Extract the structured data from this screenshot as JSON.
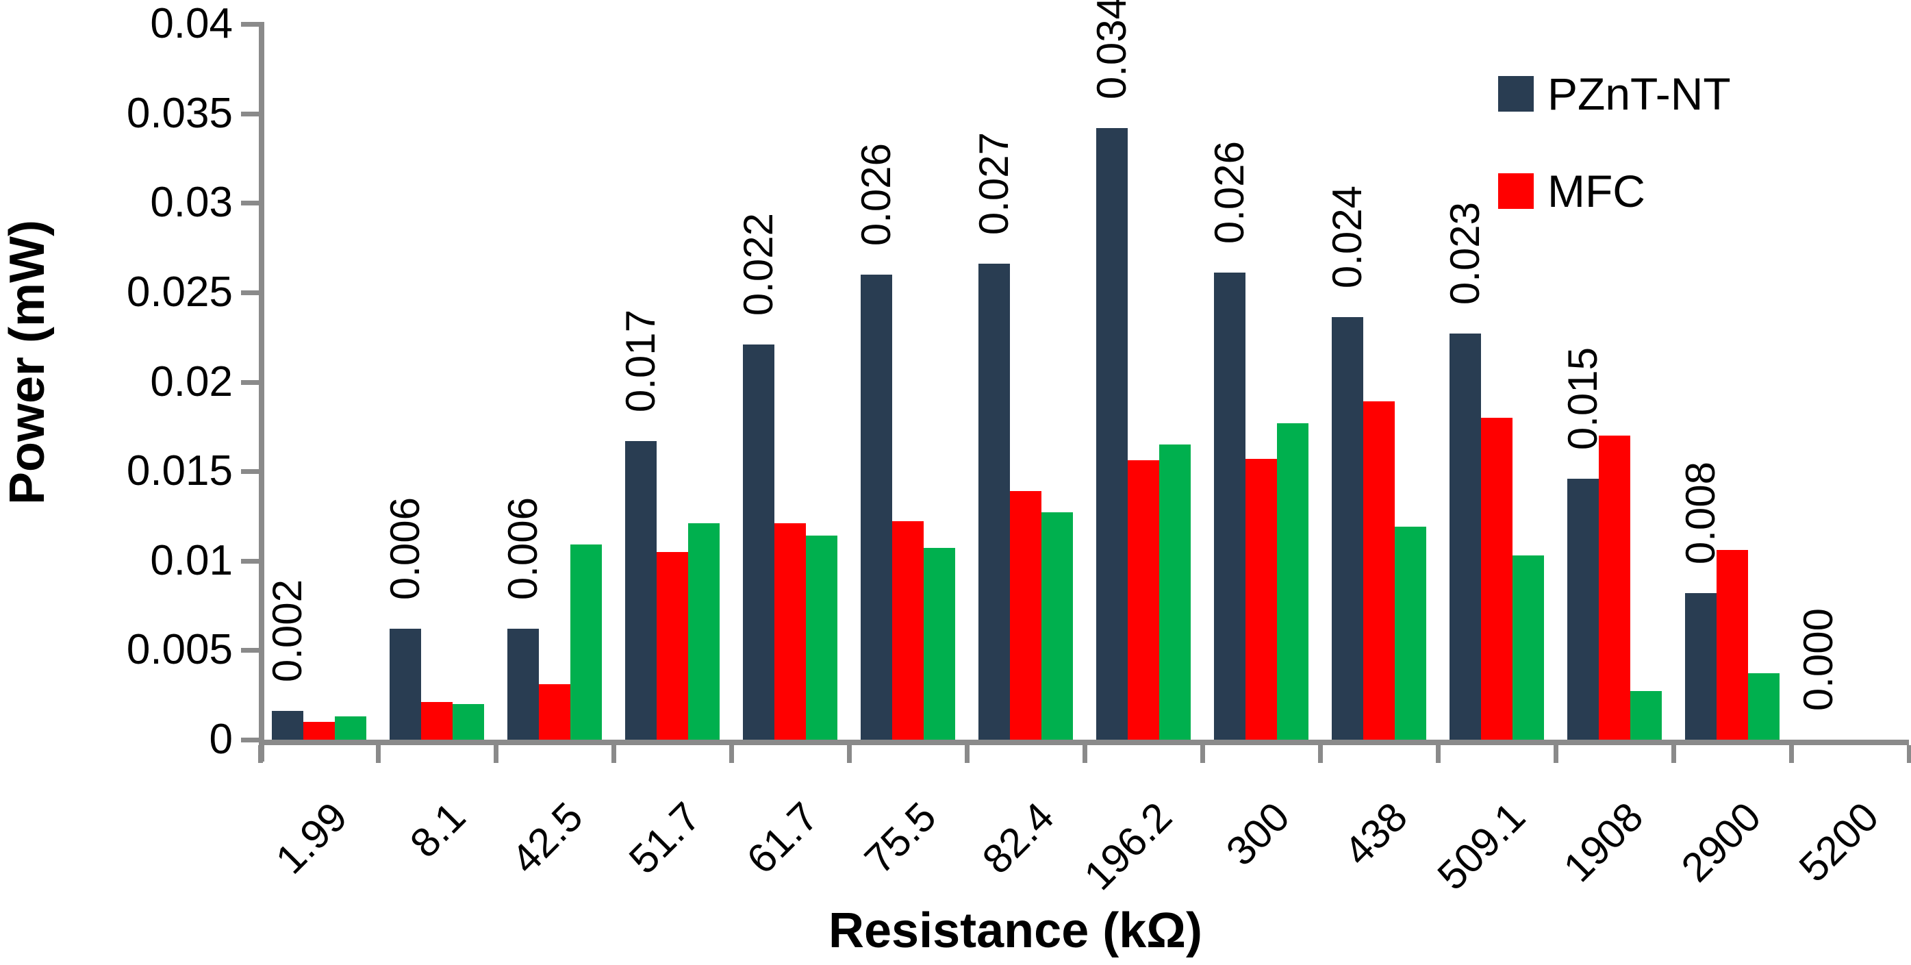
{
  "chart_data": {
    "type": "bar",
    "title": "",
    "xlabel": "Resistance (kΩ)",
    "ylabel": "Power (mW)",
    "ylim": [
      0,
      0.04
    ],
    "ytick_step": 0.005,
    "ytick_labels": [
      "0",
      "0.005",
      "0.01",
      "0.015",
      "0.02",
      "0.025",
      "0.03",
      "0.035",
      "0.04"
    ],
    "grid": false,
    "legend_position": "top-right",
    "categories": [
      "1.99",
      "8.1",
      "42.5",
      "51.7",
      "61.7",
      "75.5",
      "82.4",
      "196.2",
      "300",
      "438",
      "509.1",
      "1908",
      "2900",
      "5200"
    ],
    "series": [
      {
        "name": "PZnT-NT",
        "color": "#293D52",
        "values": [
          0.0016,
          0.0062,
          0.0062,
          0.0167,
          0.0221,
          0.026,
          0.0266,
          0.0342,
          0.0261,
          0.0236,
          0.0227,
          0.0146,
          0.0082,
          0
        ],
        "data_labels": [
          "0.002",
          "0.006",
          "0.006",
          "0.017",
          "0.022",
          "0.026",
          "0.027",
          "0.034",
          "0.026",
          "0.024",
          "0.023",
          "0.015",
          "0.008",
          "0.000"
        ]
      },
      {
        "name": "MFC",
        "color": "#FF0000",
        "values": [
          0.001,
          0.0021,
          0.0031,
          0.0105,
          0.0121,
          0.0122,
          0.0139,
          0.0156,
          0.0157,
          0.0189,
          0.018,
          0.017,
          0.0106,
          0
        ]
      },
      {
        "name": "",
        "color": "#00B04E",
        "values": [
          0.0013,
          0.002,
          0.0109,
          0.0121,
          0.0114,
          0.0107,
          0.0127,
          0.0165,
          0.0177,
          0.0119,
          0.0103,
          0.0027,
          0.0037,
          0
        ]
      }
    ]
  },
  "axes": {
    "x_title": "Resistance (kΩ)",
    "y_title": "Power (mW)"
  },
  "legend": {
    "items": [
      {
        "label": "PZnT-NT",
        "color": "#293D52"
      },
      {
        "label": "MFC",
        "color": "#FF0000"
      }
    ]
  },
  "colors": {
    "axis_line": "#8A8A8A",
    "text": "#000000",
    "background": "#FFFFFF"
  }
}
